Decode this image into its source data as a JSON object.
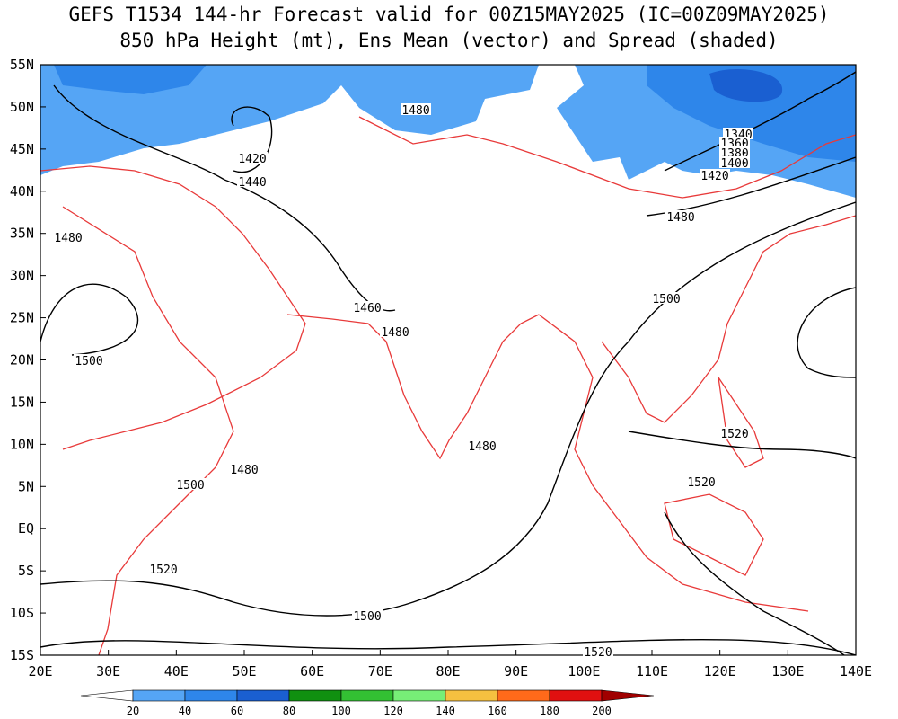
{
  "title": [
    "GEFS T1534 144-hr Forecast valid for 00Z15MAY2025 (IC=00Z09MAY2025)",
    "850 hPa Height (mt), Ens Mean (vector) and Spread (shaded)"
  ],
  "lat_labels": [
    "55N",
    "50N",
    "45N",
    "40N",
    "35N",
    "30N",
    "25N",
    "20N",
    "15N",
    "10N",
    "5N",
    "EQ",
    "5S",
    "10S",
    "15S"
  ],
  "lon_labels": [
    "20E",
    "30E",
    "40E",
    "50E",
    "60E",
    "70E",
    "80E",
    "90E",
    "100E",
    "110E",
    "120E",
    "130E",
    "140E"
  ],
  "contour_labels": [
    "1480",
    "1420",
    "1440",
    "1340",
    "1360",
    "1380",
    "1400",
    "1420",
    "1480",
    "1480",
    "1500",
    "1460",
    "1480",
    "1500",
    "1480",
    "1520",
    "1480",
    "1500",
    "1520",
    "1520",
    "1500",
    "1520"
  ],
  "colorbar": {
    "labels": [
      20,
      40,
      60,
      80,
      100,
      120,
      140,
      160,
      180,
      200
    ],
    "colors": [
      "#ffffff",
      "#55a5f5",
      "#2e86ea",
      "#1a5fd1",
      "#109010",
      "#33c033",
      "#77ee77",
      "#f5c040",
      "#ff6a1a",
      "#e01010",
      "#a00000"
    ]
  }
}
